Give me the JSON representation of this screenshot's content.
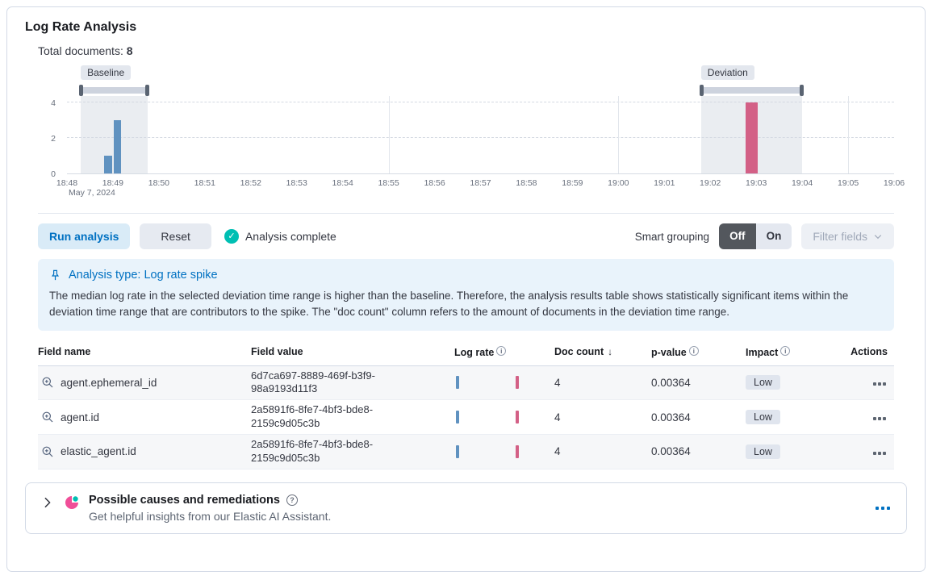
{
  "panel": {
    "title": "Log Rate Analysis"
  },
  "summary": {
    "label": "Total documents:",
    "value": "8"
  },
  "chart_data": {
    "type": "bar",
    "title": "",
    "xlabel": "",
    "ylabel": "",
    "x_span_minutes": 18,
    "x_ticks": [
      "18:48",
      "18:49",
      "18:50",
      "18:51",
      "18:52",
      "18:53",
      "18:54",
      "18:55",
      "18:56",
      "18:57",
      "18:58",
      "18:59",
      "19:00",
      "19:01",
      "19:02",
      "19:03",
      "19:04",
      "19:05",
      "19:06"
    ],
    "x_date_label": "May 7, 2024",
    "y_ticks": [
      0,
      2,
      4
    ],
    "ylim": [
      0,
      4.35
    ],
    "grid_verticals": [
      7,
      12,
      17
    ],
    "bars": [
      {
        "series": "baseline",
        "x": 0.9,
        "w": 0.17,
        "y": 1,
        "color": "#6092C0"
      },
      {
        "series": "baseline",
        "x": 1.1,
        "w": 0.17,
        "y": 3,
        "color": "#6092C0"
      },
      {
        "series": "deviation",
        "x": 14.9,
        "w": 0.28,
        "y": 4,
        "color": "#D36086"
      }
    ],
    "baseline_window": {
      "label": "Baseline",
      "start": 0.3,
      "end": 1.76
    },
    "deviation_window": {
      "label": "Deviation",
      "start": 13.8,
      "end": 16.0
    }
  },
  "toolbar": {
    "run_label": "Run analysis",
    "reset_label": "Reset",
    "status_label": "Analysis complete",
    "smart_grouping_label": "Smart grouping",
    "toggle_off": "Off",
    "toggle_on": "On",
    "filter_fields_label": "Filter fields"
  },
  "callout": {
    "title": "Analysis type: Log rate spike",
    "body": "The median log rate in the selected deviation time range is higher than the baseline. Therefore, the analysis results table shows statistically significant items within the deviation time range that are contributors to the spike. The \"doc count\" column refers to the amount of documents in the deviation time range."
  },
  "table": {
    "columns": [
      "Field name",
      "Field value",
      "Log rate",
      "Doc count",
      "p-value",
      "Impact",
      "Actions"
    ],
    "rows": [
      {
        "field_name": "agent.ephemeral_id",
        "field_value": "6d7ca697-8889-469f-b3f9-98a9193d11f3",
        "doc_count": "4",
        "p_value": "0.00364",
        "impact": "Low"
      },
      {
        "field_name": "agent.id",
        "field_value": "2a5891f6-8fe7-4bf3-bde8-2159c9d05c3b",
        "doc_count": "4",
        "p_value": "0.00364",
        "impact": "Low"
      },
      {
        "field_name": "elastic_agent.id",
        "field_value": "2a5891f6-8fe7-4bf3-bde8-2159c9d05c3b",
        "doc_count": "4",
        "p_value": "0.00364",
        "impact": "Low"
      }
    ]
  },
  "accordion": {
    "title": "Possible causes and remediations",
    "subtitle": "Get helpful insights from our Elastic AI Assistant."
  },
  "colors": {
    "accent_blue": "#0071C2",
    "baseline_bar": "#6092C0",
    "deviation_bar": "#D36086",
    "success": "#00BFB3",
    "callout_bg": "#E9F3FB",
    "border": "#D3DAE6",
    "assistant_pink": "#F04E98",
    "assistant_teal": "#00BFB3"
  }
}
